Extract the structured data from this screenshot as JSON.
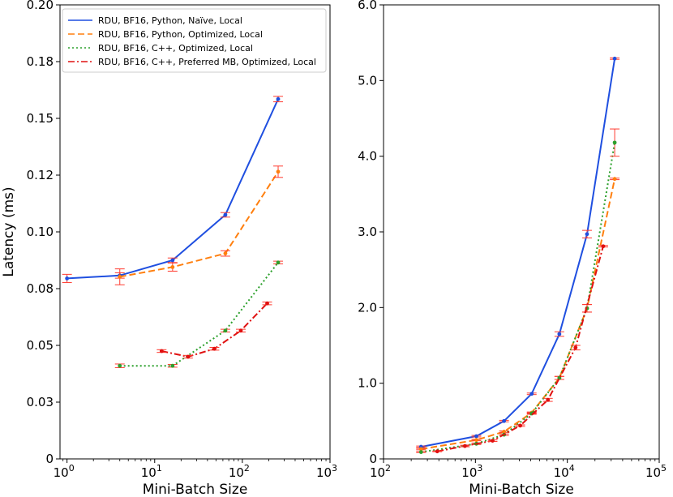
{
  "chart_data": [
    {
      "type": "line",
      "xscale": "log",
      "xlim_log10": [
        -0.08,
        3.0
      ],
      "xticks": [
        {
          "exp": 0,
          "label": "10",
          "sup": "0"
        },
        {
          "exp": 1,
          "label": "10",
          "sup": "1"
        },
        {
          "exp": 2,
          "label": "10",
          "sup": "2"
        },
        {
          "exp": 3,
          "label": "10",
          "sup": "3"
        }
      ],
      "ylim": [
        0,
        0.2
      ],
      "yticks": [
        {
          "value": 0,
          "label": "0"
        },
        {
          "value": 0.025,
          "label": "0.03"
        },
        {
          "value": 0.05,
          "label": "0.05"
        },
        {
          "value": 0.075,
          "label": "0.08"
        },
        {
          "value": 0.1,
          "label": "0.10"
        },
        {
          "value": 0.125,
          "label": "0.12"
        },
        {
          "value": 0.15,
          "label": "0.15"
        },
        {
          "value": 0.175,
          "label": "0.18"
        },
        {
          "value": 0.2,
          "label": "0.20"
        }
      ],
      "xlabel": "Mini-Batch Size",
      "ylabel": "Latency (ms)",
      "legend_position": "top-left",
      "series": [
        {
          "name": "RDU, BF16, Python, Naïve, Local",
          "color": "#1f4fe0",
          "dash": "solid",
          "x": [
            1,
            4,
            16,
            64,
            256
          ],
          "y": [
            0.0795,
            0.0808,
            0.0875,
            0.1075,
            0.1585
          ],
          "err": [
            0.0018,
            0.0012,
            0.001,
            0.001,
            0.0012
          ]
        },
        {
          "name": "RDU, BF16, Python, Optimized, Local",
          "color": "#ff7f0e",
          "dash": "dashed",
          "x": [
            4,
            16,
            64,
            256
          ],
          "y": [
            0.0802,
            0.0845,
            0.0905,
            0.1265
          ],
          "err": [
            0.0035,
            0.0018,
            0.0012,
            0.0025
          ]
        },
        {
          "name": "RDU, BF16, C++, Optimized, Local",
          "color": "#2ca02c",
          "dash": "dotted",
          "x": [
            4,
            16,
            64,
            256
          ],
          "y": [
            0.041,
            0.041,
            0.0565,
            0.0865
          ],
          "err": [
            0.0008,
            0.0006,
            0.0006,
            0.0006
          ]
        },
        {
          "name": "RDU, BF16, C++, Preferred MB, Optimized, Local",
          "color": "#e01010",
          "dash": "dashdot",
          "x": [
            12,
            24,
            48,
            96,
            192
          ],
          "y": [
            0.0475,
            0.045,
            0.0485,
            0.0565,
            0.0685
          ],
          "err": [
            0.0006,
            0.0006,
            0.0006,
            0.0006,
            0.0006
          ]
        }
      ]
    },
    {
      "type": "line",
      "xscale": "log",
      "xlim_log10": [
        2.0,
        5.0
      ],
      "xticks": [
        {
          "exp": 2,
          "label": "10",
          "sup": "2"
        },
        {
          "exp": 3,
          "label": "10",
          "sup": "3"
        },
        {
          "exp": 4,
          "label": "10",
          "sup": "4"
        },
        {
          "exp": 5,
          "label": "10",
          "sup": "5"
        }
      ],
      "ylim": [
        0,
        6.0
      ],
      "yticks": [
        {
          "value": 0,
          "label": "0"
        },
        {
          "value": 1.0,
          "label": "1.0"
        },
        {
          "value": 2.0,
          "label": "2.0"
        },
        {
          "value": 3.0,
          "label": "3.0"
        },
        {
          "value": 4.0,
          "label": "4.0"
        },
        {
          "value": 5.0,
          "label": "5.0"
        },
        {
          "value": 6.0,
          "label": "6.0"
        }
      ],
      "xlabel": "Mini-Batch Size",
      "ylabel": "",
      "series": [
        {
          "name": "RDU, BF16, Python, Naïve, Local",
          "color": "#1f4fe0",
          "dash": "solid",
          "x": [
            256,
            1024,
            2048,
            4096,
            8192,
            16384,
            32768
          ],
          "y": [
            0.16,
            0.3,
            0.5,
            0.86,
            1.65,
            2.97,
            5.29
          ],
          "err": [
            0.01,
            0.01,
            0.01,
            0.01,
            0.03,
            0.05,
            0.01
          ]
        },
        {
          "name": "RDU, BF16, Python, Optimized, Local",
          "color": "#ff7f0e",
          "dash": "dashed",
          "x": [
            256,
            1024,
            2048,
            4096,
            8192,
            16384,
            32768
          ],
          "y": [
            0.13,
            0.25,
            0.36,
            0.61,
            1.07,
            1.99,
            3.7
          ],
          "err": [
            0.01,
            0.01,
            0.01,
            0.01,
            0.02,
            0.05,
            0.01
          ]
        },
        {
          "name": "RDU, BF16, C++, Optimized, Local",
          "color": "#2ca02c",
          "dash": "dotted",
          "x": [
            256,
            1024,
            2048,
            4096,
            8192,
            16384,
            32768
          ],
          "y": [
            0.09,
            0.2,
            0.32,
            0.6,
            1.07,
            1.99,
            4.18
          ],
          "err": [
            0.005,
            0.01,
            0.01,
            0.01,
            0.02,
            0.05,
            0.18
          ]
        },
        {
          "name": "RDU, BF16, C++, Preferred MB, Optimized, Local",
          "color": "#e01010",
          "dash": "dashdot",
          "x": [
            384,
            768,
            1536,
            3072,
            6144,
            12288,
            24576
          ],
          "y": [
            0.1,
            0.17,
            0.24,
            0.44,
            0.78,
            1.47,
            2.81
          ],
          "err": [
            0.005,
            0.01,
            0.01,
            0.01,
            0.02,
            0.03,
            0.01
          ]
        }
      ]
    }
  ]
}
